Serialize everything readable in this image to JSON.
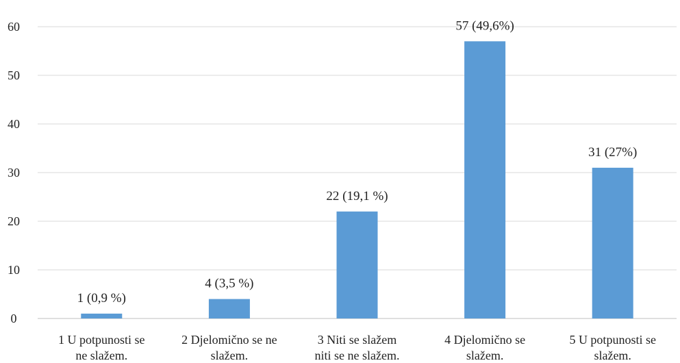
{
  "chart_data": {
    "type": "bar",
    "title": "",
    "xlabel": "",
    "ylabel": "",
    "ylim": [
      0,
      60
    ],
    "yticks": [
      0,
      10,
      20,
      30,
      40,
      50,
      60
    ],
    "grid": true,
    "legend": "none",
    "bar_color": "#5b9bd5",
    "categories": [
      [
        "1 U potpunosti se",
        "ne slažem."
      ],
      [
        "2 Djelomično se ne",
        "slažem."
      ],
      [
        "3 Niti se slažem",
        "niti se ne slažem."
      ],
      [
        "4 Djelomično se",
        "slažem."
      ],
      [
        "5 U potpunosti se",
        "slažem."
      ]
    ],
    "values": [
      1,
      4,
      22,
      57,
      31
    ],
    "data_labels": [
      "1 (0,9 %)",
      "4 (3,5 %)",
      "22 (19,1 %)",
      "57 (49,6%)",
      "31 (27%)"
    ]
  }
}
